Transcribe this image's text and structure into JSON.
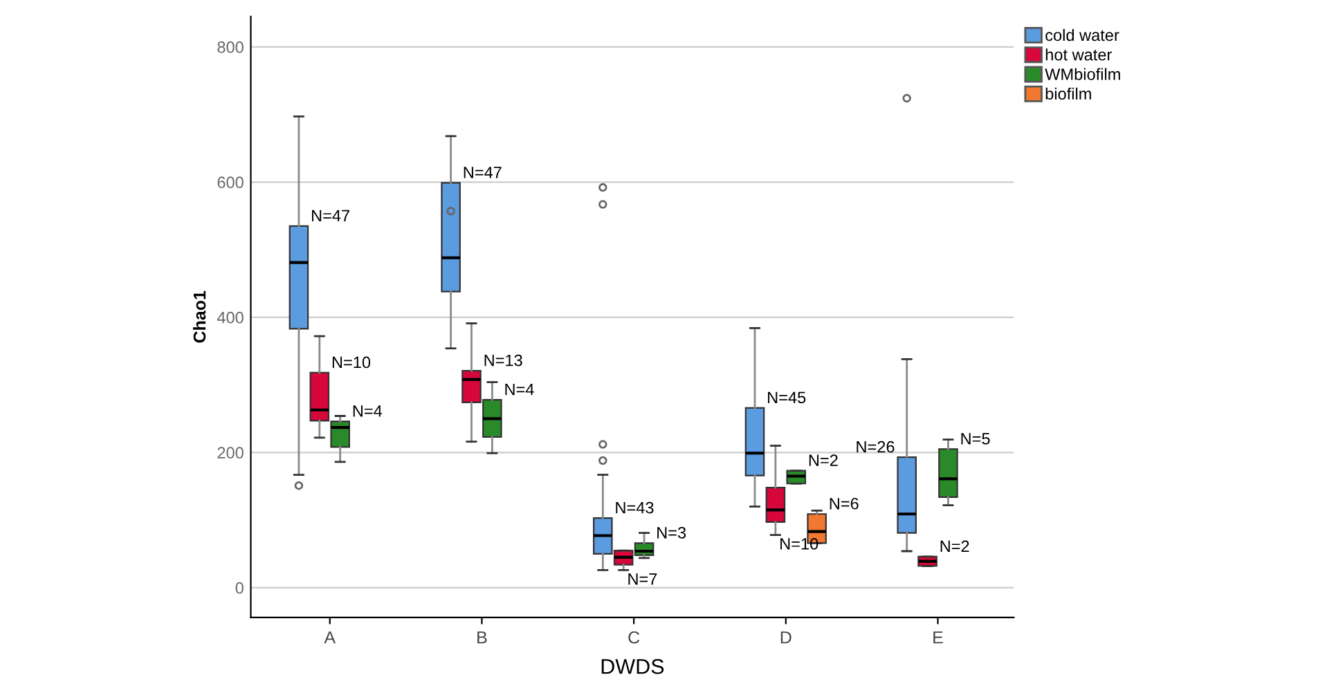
{
  "chart_data": {
    "type": "box",
    "xlabel": "DWDS",
    "ylabel": "Chao1",
    "categories": [
      "A",
      "B",
      "C",
      "D",
      "E"
    ],
    "ylim": [
      -44,
      845
    ],
    "yticks": [
      0,
      200,
      400,
      600,
      800
    ],
    "grid": "y",
    "legend": "top right",
    "series": [
      {
        "name": "cold water",
        "color": "#5b9be0",
        "value_labels": [
          "N=47",
          "N=47",
          "N=43",
          "N=45",
          "N=26"
        ],
        "boxes": [
          {
            "low": 167,
            "q1": 383,
            "median": 481,
            "q3": 535,
            "high": 697,
            "outliers": [
              151
            ]
          },
          {
            "low": 354,
            "q1": 438,
            "median": 488,
            "q3": 599,
            "high": 668,
            "outliers": [
              557
            ]
          },
          {
            "low": 26,
            "q1": 50,
            "median": 77,
            "q3": 103,
            "high": 167,
            "outliers": [
              188,
              212,
              567,
              592
            ]
          },
          {
            "low": 120,
            "q1": 166,
            "median": 199,
            "q3": 266,
            "high": 384
          },
          {
            "low": 54,
            "q1": 81,
            "median": 109,
            "q3": 193,
            "high": 338,
            "outliers": [
              724
            ]
          }
        ]
      },
      {
        "name": "hot water",
        "color": "#d7063b",
        "value_labels": [
          "N=10",
          "N=13",
          "N=7",
          "N=10",
          "N=2"
        ],
        "boxes": [
          {
            "low": 222,
            "q1": 247,
            "median": 263,
            "q3": 318,
            "high": 372
          },
          {
            "low": 216,
            "q1": 274,
            "median": 308,
            "q3": 321,
            "high": 391
          },
          {
            "low": 26,
            "q1": 34,
            "median": 45,
            "q3": 55,
            "high": 55
          },
          {
            "low": 78,
            "q1": 97,
            "median": 115,
            "q3": 148,
            "high": 210
          },
          {
            "low": 32,
            "q1": 32,
            "median": 39,
            "q3": 46,
            "high": 46
          }
        ]
      },
      {
        "name": "WMbiofilm",
        "color": "#2a8a2a",
        "value_labels": [
          "N=4",
          "N=4",
          "N=3",
          "N=2",
          "N=5"
        ],
        "boxes": [
          {
            "low": 186,
            "q1": 208,
            "median": 237,
            "q3": 246,
            "high": 254
          },
          {
            "low": 199,
            "q1": 223,
            "median": 250,
            "q3": 278,
            "high": 304
          },
          {
            "low": 44,
            "q1": 48,
            "median": 54,
            "q3": 66,
            "high": 81
          },
          {
            "low": 154,
            "q1": 154,
            "median": 165,
            "q3": 173,
            "high": 173
          },
          {
            "low": 122,
            "q1": 134,
            "median": 161,
            "q3": 205,
            "high": 219
          }
        ]
      },
      {
        "name": "biofilm",
        "color": "#f07830",
        "value_labels": [
          null,
          null,
          null,
          "N=6",
          null
        ],
        "boxes": [
          null,
          null,
          null,
          {
            "low": 66,
            "q1": 66,
            "median": 83,
            "q3": 109,
            "high": 114
          },
          null
        ]
      }
    ]
  }
}
